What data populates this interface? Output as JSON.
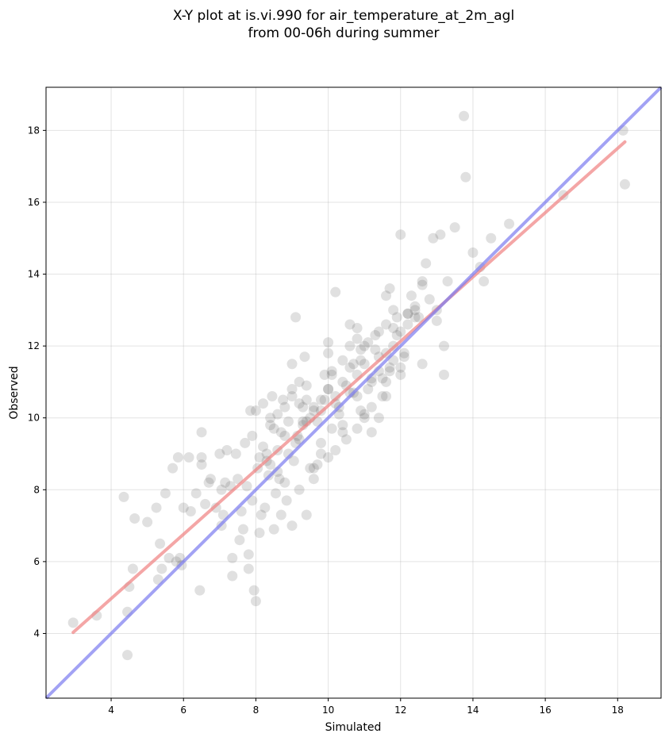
{
  "chart_data": {
    "type": "scatter",
    "title": [
      "X-Y plot at is.vi.990 for air_temperature_at_2m_agl",
      "from 00-06h during summer"
    ],
    "xlabel": "Simulated",
    "ylabel": "Observed",
    "xlim": [
      2.2,
      19.2
    ],
    "ylim": [
      2.2,
      19.2
    ],
    "xticks": [
      4,
      6,
      8,
      10,
      12,
      14,
      16,
      18
    ],
    "yticks": [
      4,
      6,
      8,
      10,
      12,
      14,
      16,
      18
    ],
    "grid": true,
    "colors": {
      "points": "#555555",
      "fit_line": "#f08080",
      "identity_line": "#7b7bef"
    },
    "regression_line": {
      "x": [
        2.95,
        18.2
      ],
      "y": [
        4.03,
        17.68
      ]
    },
    "identity_line": {
      "x": [
        2.2,
        19.2
      ],
      "y": [
        2.2,
        19.2
      ]
    },
    "points": {
      "x": [
        2.95,
        3.6,
        4.35,
        4.45,
        4.45,
        4.5,
        4.6,
        4.65,
        5.0,
        5.25,
        5.3,
        5.35,
        5.4,
        5.5,
        5.6,
        5.7,
        5.8,
        5.85,
        5.9,
        5.95,
        6.0,
        6.15,
        6.2,
        6.35,
        6.45,
        6.5,
        6.5,
        6.5,
        6.6,
        6.7,
        6.75,
        6.9,
        7.0,
        7.05,
        7.05,
        7.1,
        7.15,
        7.2,
        7.3,
        7.35,
        7.35,
        7.45,
        7.5,
        7.55,
        7.6,
        7.65,
        7.7,
        7.75,
        7.8,
        7.8,
        7.85,
        7.9,
        7.95,
        8.0,
        8.05,
        8.1,
        8.15,
        8.2,
        8.25,
        8.3,
        8.35,
        8.4,
        8.45,
        8.5,
        8.55,
        8.6,
        8.65,
        8.7,
        8.75,
        8.8,
        8.85,
        8.9,
        9.0,
        9.05,
        9.1,
        9.15,
        9.2,
        9.3,
        9.35,
        9.4,
        9.5,
        9.6,
        9.7,
        9.8,
        9.9,
        10.0,
        10.1,
        10.2,
        10.3,
        10.4,
        10.5,
        10.6,
        10.7,
        10.8,
        10.9,
        11.0,
        11.1,
        11.2,
        11.3,
        11.4,
        11.5,
        11.6,
        11.7,
        11.8,
        11.9,
        12.0,
        12.1,
        12.2,
        12.3,
        12.4,
        12.5,
        12.6,
        12.7,
        12.8,
        12.9,
        13.0,
        13.1,
        13.2,
        13.3,
        13.5,
        13.75,
        13.8,
        14.0,
        14.2,
        14.3,
        14.5,
        15.0,
        16.5,
        18.15,
        18.2,
        8.2,
        8.4,
        8.6,
        8.8,
        9.0,
        9.2,
        9.4,
        9.6,
        9.8,
        10.0,
        10.2,
        10.4,
        10.6,
        10.8,
        11.0,
        11.2,
        11.4,
        11.6,
        11.8,
        12.0,
        8.3,
        8.7,
        9.1,
        9.5,
        9.9,
        10.3,
        10.7,
        11.1,
        11.5,
        11.9,
        8.5,
        8.9,
        9.3,
        9.7,
        10.1,
        10.5,
        10.9,
        11.3,
        11.7,
        12.1,
        7.9,
        8.1,
        9.0,
        9.8,
        10.6,
        11.4,
        12.2,
        12.6,
        13.0,
        9.2,
        9.6,
        10.0,
        10.4,
        10.8,
        11.2,
        11.6,
        12.0,
        12.4,
        8.0,
        8.8,
        9.6,
        10.4,
        11.2,
        12.0,
        9.4,
        10.2,
        11.0,
        11.8,
        8.6,
        9.4,
        10.2,
        11.0,
        11.8,
        12.6,
        9.0,
        9.8,
        10.6,
        11.4,
        12.2,
        10.0,
        10.8,
        11.6,
        9.3,
        10.1,
        10.9,
        11.7,
        8.4,
        9.2,
        10.0,
        10.8,
        11.6,
        12.4,
        13.2
      ],
      "y": [
        4.3,
        4.5,
        7.8,
        3.4,
        4.6,
        5.3,
        5.8,
        7.2,
        7.1,
        7.5,
        5.5,
        6.5,
        5.8,
        7.9,
        6.1,
        8.6,
        6.0,
        8.9,
        6.1,
        5.9,
        7.5,
        8.9,
        7.4,
        7.9,
        5.2,
        8.7,
        8.9,
        9.6,
        7.6,
        8.2,
        8.3,
        7.5,
        9.0,
        8.0,
        7.0,
        7.3,
        8.2,
        9.1,
        8.1,
        5.6,
        6.1,
        9.0,
        8.3,
        6.6,
        7.4,
        6.9,
        9.3,
        8.1,
        5.8,
        6.2,
        10.2,
        7.7,
        5.2,
        4.9,
        8.6,
        6.8,
        7.3,
        10.4,
        7.5,
        9.0,
        8.4,
        8.7,
        10.6,
        6.9,
        7.9,
        9.1,
        8.3,
        7.3,
        10.5,
        8.2,
        7.7,
        9.9,
        7.0,
        8.8,
        12.8,
        9.5,
        8.0,
        9.9,
        11.7,
        7.3,
        8.6,
        10.3,
        9.9,
        10.2,
        11.2,
        10.8,
        9.7,
        10.6,
        10.3,
        9.6,
        10.9,
        11.4,
        10.7,
        10.6,
        11.6,
        10.0,
        12.1,
        11.1,
        11.9,
        12.4,
        10.6,
        12.6,
        11.3,
        11.6,
        12.8,
        15.1,
        11.7,
        12.6,
        13.4,
        12.8,
        12.8,
        13.8,
        14.3,
        13.3,
        15.0,
        13.0,
        15.1,
        12.0,
        13.8,
        15.3,
        18.4,
        16.7,
        14.6,
        14.2,
        13.8,
        15.0,
        15.4,
        16.2,
        18.0,
        16.5,
        9.2,
        9.8,
        10.1,
        10.3,
        10.6,
        9.4,
        9.9,
        10.2,
        10.5,
        10.8,
        10.4,
        11.0,
        10.7,
        11.2,
        11.5,
        11.0,
        11.3,
        11.8,
        12.0,
        11.2,
        8.8,
        9.6,
        9.3,
        10.0,
        10.5,
        10.1,
        11.5,
        10.8,
        11.1,
        12.3,
        9.7,
        9.0,
        9.8,
        8.7,
        11.3,
        9.4,
        10.2,
        12.3,
        11.4,
        11.8,
        9.5,
        8.9,
        10.8,
        9.3,
        12.0,
        10.0,
        12.9,
        11.5,
        12.7,
        11.0,
        8.6,
        12.1,
        9.8,
        12.5,
        10.3,
        11.0,
        11.4,
        13.1,
        10.2,
        9.5,
        8.3,
        11.6,
        9.6,
        12.4,
        10.9,
        9.1,
        12.0,
        12.5,
        8.5,
        10.5,
        13.5,
        10.1,
        13.0,
        13.7,
        11.5,
        9.0,
        12.6,
        11.7,
        12.9,
        11.8,
        9.7,
        13.4,
        10.3,
        11.2,
        11.9,
        13.6,
        10.0,
        10.4,
        8.9,
        12.2,
        10.6,
        13.0,
        11.2
      ]
    }
  }
}
